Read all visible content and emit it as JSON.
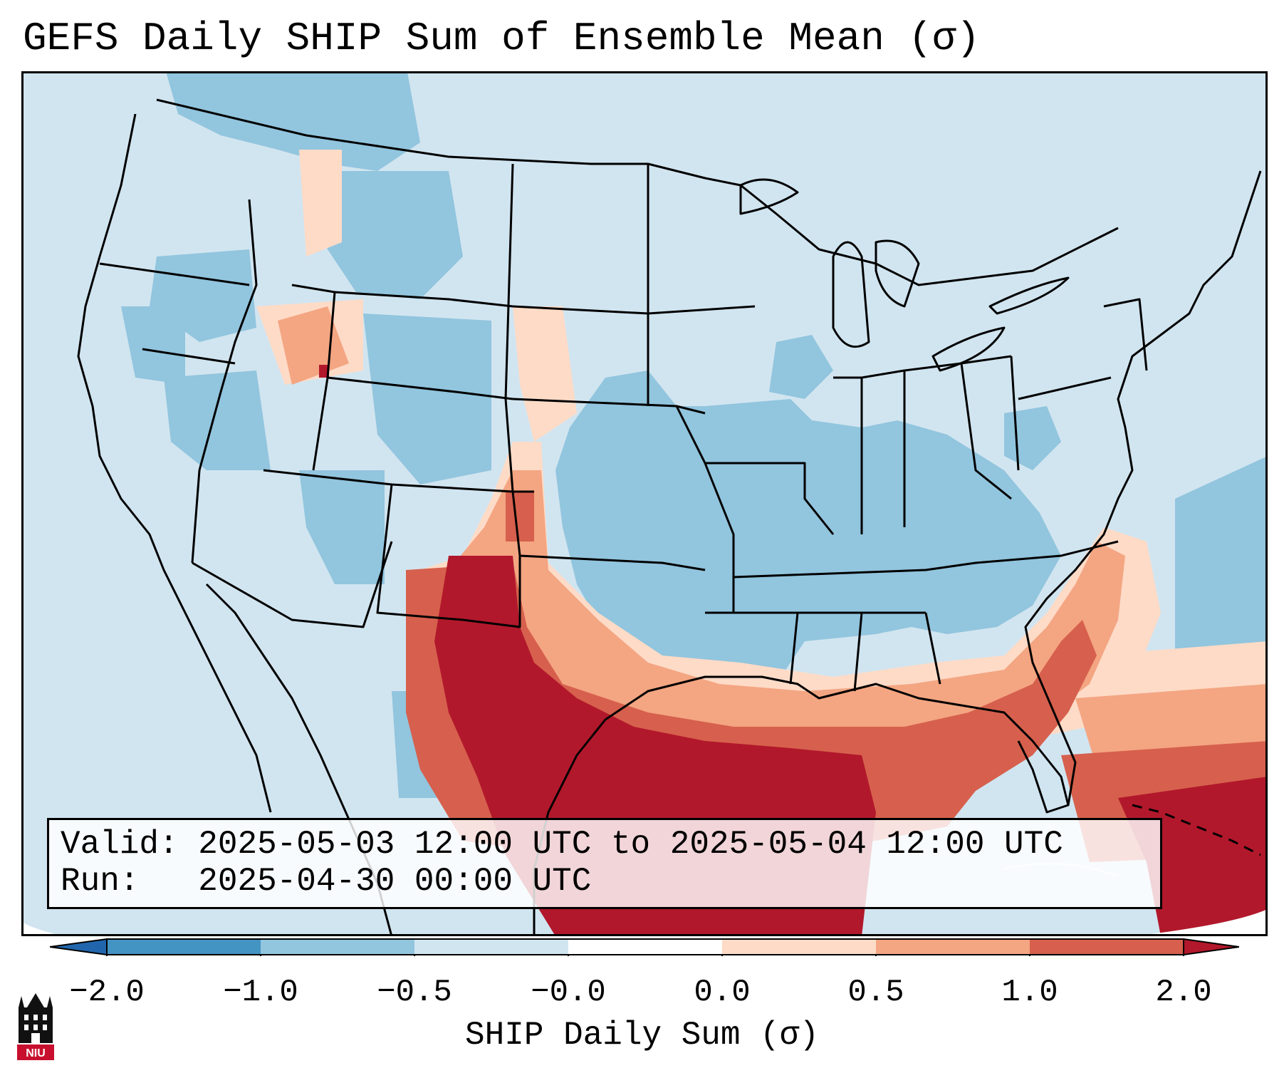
{
  "title": "GEFS Daily SHIP Sum of Ensemble Mean (σ)",
  "info": {
    "valid_label": "Valid:",
    "valid_value": "2025-05-03 12:00 UTC to 2025-05-04 12:00 UTC",
    "run_label": "Run:",
    "run_value": "2025-04-30 00:00 UTC"
  },
  "colorbar": {
    "label": "SHIP Daily Sum (σ)",
    "tick_labels": [
      "−2.0",
      "−1.0",
      "−0.5",
      "−0.0",
      "0.0",
      "0.5",
      "1.0",
      "2.0"
    ],
    "colors": [
      "#4393c3",
      "#92c5de",
      "#d1e5f0",
      "#fddbc7",
      "#f4a582",
      "#d6604d",
      "#b2182b"
    ],
    "extend_low_color": "#2166ac",
    "extend_high_color": "#b2182b"
  },
  "logo": {
    "text": "NIU",
    "icon": "niu-building-icon"
  }
}
